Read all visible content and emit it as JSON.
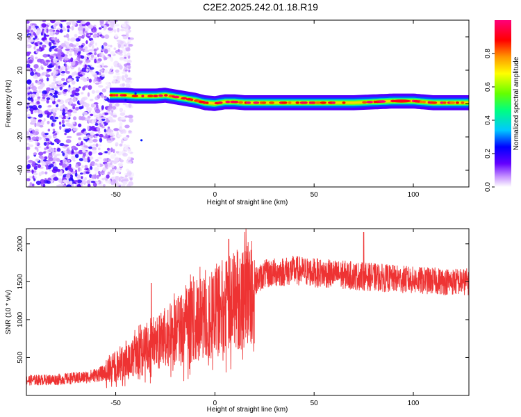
{
  "title": "C2E2.2025.242.01.18.R19",
  "colorbar": {
    "label": "Normalized spectral amplitude",
    "ticks": [
      0.0,
      0.2,
      0.4,
      0.6,
      0.8
    ],
    "tick_labels": [
      "0.0",
      "0.2",
      "0.4",
      "0.6",
      "0.8"
    ],
    "range": [
      0,
      1
    ],
    "colors": [
      "#ffffff",
      "#c896ff",
      "#6400ff",
      "#0000ff",
      "#00c8ff",
      "#00ff80",
      "#64ff00",
      "#ffff00",
      "#ff9600",
      "#ff0000",
      "#ff0078"
    ]
  },
  "chart_data": [
    {
      "type": "heatmap",
      "title": "C2E2.2025.242.01.18.R19",
      "xlabel": "Height of straight line (km)",
      "ylabel": "Frequency (Hz)",
      "xlim": [
        -95,
        128
      ],
      "ylim": [
        -50,
        50
      ],
      "x_ticks": [
        -50,
        0,
        50,
        100
      ],
      "x_tick_labels": [
        "-50",
        "0",
        "50",
        "100"
      ],
      "y_ticks": [
        -40,
        -20,
        0,
        20,
        40
      ],
      "y_tick_labels": [
        "-40",
        "-20",
        "0",
        "20",
        "40"
      ],
      "noise_region_km": [
        -95,
        -52
      ],
      "ridge": {
        "x": [
          -53,
          -45,
          -40,
          -35,
          -30,
          -25,
          -20,
          -15,
          -10,
          -5,
          0,
          5,
          10,
          15,
          20,
          30,
          40,
          50,
          60,
          70,
          80,
          90,
          100,
          110,
          120,
          128
        ],
        "freq": [
          5,
          5,
          4.5,
          4.5,
          4.5,
          5,
          4,
          3,
          2,
          0.5,
          0,
          1,
          1,
          0.5,
          0.5,
          0.5,
          0.5,
          0.5,
          0.5,
          0.5,
          1,
          1.5,
          1.5,
          0.5,
          0.5,
          0.5
        ]
      },
      "grid": false,
      "legend": "colorbar-right"
    },
    {
      "type": "line",
      "xlabel": "Height of straight line (km)",
      "ylabel": "SNR (10 * v/v)",
      "xlim": [
        -95,
        128
      ],
      "ylim": [
        0,
        2200
      ],
      "x_ticks": [
        -50,
        0,
        50,
        100
      ],
      "x_tick_labels": [
        "-50",
        "0",
        "50",
        "100"
      ],
      "y_ticks": [
        500,
        1000,
        1500,
        2000
      ],
      "y_tick_labels": [
        "500",
        "1000",
        "1500",
        "2000"
      ],
      "series_color": "#ee3333",
      "baseline": {
        "x": [
          -95,
          -80,
          -65,
          -55,
          -45,
          -35,
          -25,
          -15,
          -5,
          5,
          10,
          15,
          20,
          25,
          30,
          40,
          50,
          60,
          70,
          80,
          90,
          100,
          110,
          120,
          128
        ],
        "y": [
          200,
          210,
          240,
          300,
          450,
          600,
          750,
          900,
          1050,
          1150,
          1250,
          1350,
          1500,
          1600,
          1620,
          1650,
          1620,
          1600,
          1580,
          1560,
          1540,
          1520,
          1510,
          1500,
          1500
        ]
      },
      "peaks": [
        {
          "x": -32,
          "y": 1480
        },
        {
          "x": -12,
          "y": 1500
        },
        {
          "x": 7,
          "y": 2060
        },
        {
          "x": 75,
          "y": 2150
        }
      ],
      "grid": false
    }
  ]
}
